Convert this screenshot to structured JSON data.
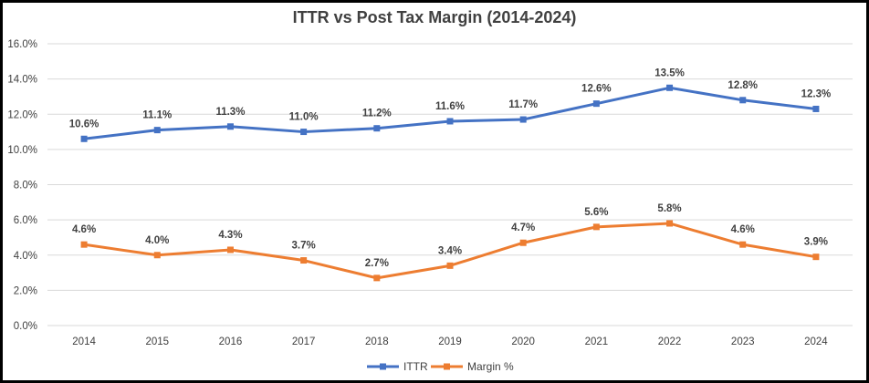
{
  "chart_data": {
    "type": "line",
    "title": "ITTR vs Post Tax Margin (2014-2024)",
    "categories": [
      "2014",
      "2015",
      "2016",
      "2017",
      "2018",
      "2019",
      "2020",
      "2021",
      "2022",
      "2023",
      "2024"
    ],
    "y_ticks": [
      "0.0%",
      "2.0%",
      "4.0%",
      "6.0%",
      "8.0%",
      "10.0%",
      "12.0%",
      "14.0%",
      "16.0%"
    ],
    "ylim": [
      0,
      16
    ],
    "grid": true,
    "legend_position": "bottom",
    "series": [
      {
        "name": "ITTR",
        "color": "#4472c4",
        "values": [
          10.6,
          11.1,
          11.3,
          11.0,
          11.2,
          11.6,
          11.7,
          12.6,
          13.5,
          12.8,
          12.3
        ],
        "labels": [
          "10.6%",
          "11.1%",
          "11.3%",
          "11.0%",
          "11.2%",
          "11.6%",
          "11.7%",
          "12.6%",
          "13.5%",
          "12.8%",
          "12.3%"
        ]
      },
      {
        "name": "Margin %",
        "color": "#ed7d31",
        "values": [
          4.6,
          4.0,
          4.3,
          3.7,
          2.7,
          3.4,
          4.7,
          5.6,
          5.8,
          4.6,
          3.9
        ],
        "labels": [
          "4.6%",
          "4.0%",
          "4.3%",
          "3.7%",
          "2.7%",
          "3.4%",
          "4.7%",
          "5.6%",
          "5.8%",
          "4.6%",
          "3.9%"
        ]
      }
    ]
  }
}
